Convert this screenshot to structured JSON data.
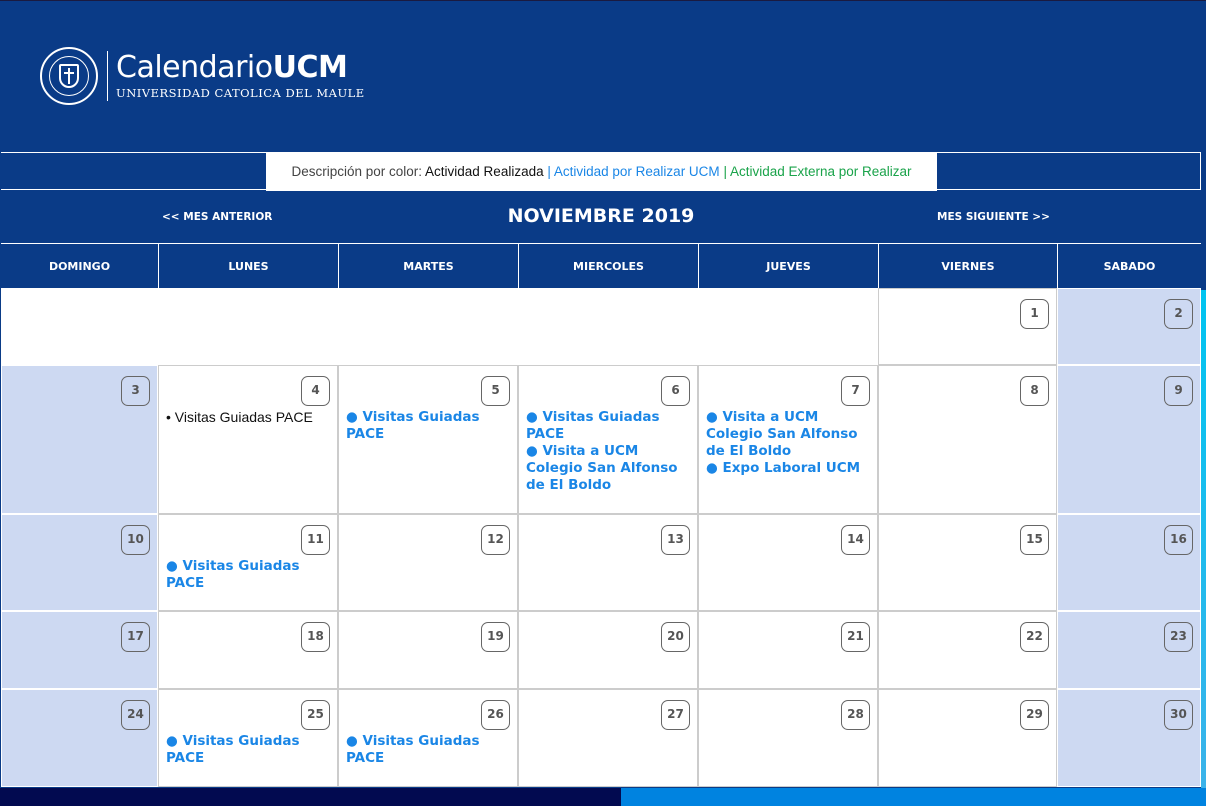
{
  "header": {
    "logo_title": "Calendario",
    "logo_title_bold": "UCM",
    "logo_subtitle": "UNIVERSIDAD CATOLICA DEL MAULE",
    "seal_text": "UNIVERSIDAD CATOLICA DEL MAULE CHILE"
  },
  "legend": {
    "prefix": "Descripción por color:",
    "done": "Actividad Realizada",
    "sep": " | ",
    "ucm": "Actividad por Realizar UCM",
    "ext": "Actividad Externa por Realizar",
    "colors": {
      "done": "#111111",
      "ucm": "#1a86e6",
      "ext": "#1aa34a"
    }
  },
  "nav": {
    "prev": "<< MES ANTERIOR",
    "month": "NOVIEMBRE 2019",
    "next": "MES SIGUIENTE >>"
  },
  "weekdays": [
    "DOMINGO",
    "LUNES",
    "MARTES",
    "MIERCOLES",
    "JUEVES",
    "VIERNES",
    "SABADO"
  ],
  "weeks": [
    [
      null,
      null,
      null,
      null,
      null,
      {
        "day": "1",
        "events": []
      },
      {
        "day": "2",
        "events": []
      }
    ],
    [
      {
        "day": "3",
        "events": []
      },
      {
        "day": "4",
        "events": [
          {
            "text": "• Visitas Guiadas PACE",
            "type": "done"
          }
        ]
      },
      {
        "day": "5",
        "events": [
          {
            "text": "● Visitas Guiadas PACE",
            "type": "ucm"
          }
        ]
      },
      {
        "day": "6",
        "events": [
          {
            "text": "● Visitas Guiadas PACE",
            "type": "ucm"
          },
          {
            "text": "● Visita a UCM Colegio San Alfonso de El Boldo",
            "type": "ucm"
          }
        ]
      },
      {
        "day": "7",
        "events": [
          {
            "text": "● Visita a UCM Colegio San Alfonso de El Boldo",
            "type": "ucm"
          },
          {
            "text": "● Expo Laboral UCM",
            "type": "ucm"
          }
        ]
      },
      {
        "day": "8",
        "events": []
      },
      {
        "day": "9",
        "events": []
      }
    ],
    [
      {
        "day": "10",
        "events": []
      },
      {
        "day": "11",
        "events": [
          {
            "text": "● Visitas Guiadas PACE",
            "type": "ucm"
          }
        ]
      },
      {
        "day": "12",
        "events": []
      },
      {
        "day": "13",
        "events": []
      },
      {
        "day": "14",
        "events": []
      },
      {
        "day": "15",
        "events": []
      },
      {
        "day": "16",
        "events": []
      }
    ],
    [
      {
        "day": "17",
        "events": []
      },
      {
        "day": "18",
        "events": []
      },
      {
        "day": "19",
        "events": []
      },
      {
        "day": "20",
        "events": []
      },
      {
        "day": "21",
        "events": []
      },
      {
        "day": "22",
        "events": []
      },
      {
        "day": "23",
        "events": []
      }
    ],
    [
      {
        "day": "24",
        "events": []
      },
      {
        "day": "25",
        "events": [
          {
            "text": "● Visitas Guiadas PACE",
            "type": "ucm"
          }
        ]
      },
      {
        "day": "26",
        "events": [
          {
            "text": "● Visitas Guiadas PACE",
            "type": "ucm"
          }
        ]
      },
      {
        "day": "27",
        "events": []
      },
      {
        "day": "28",
        "events": []
      },
      {
        "day": "29",
        "events": []
      },
      {
        "day": "30",
        "events": []
      }
    ]
  ]
}
